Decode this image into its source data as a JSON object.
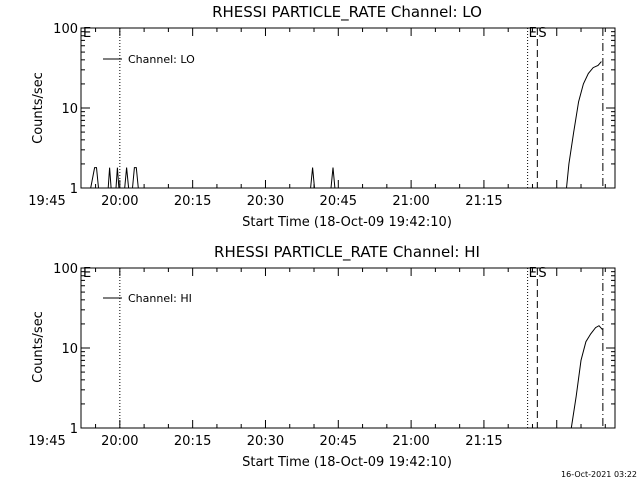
{
  "chart_data": [
    {
      "type": "line",
      "title": "RHESSI PARTICLE_RATE Channel: LO",
      "xlabel": "Start Time (18-Oct-09 19:42:10)",
      "ylabel": "Counts/sec",
      "yscale": "log",
      "xlim_minutes": [
        -8,
        102
      ],
      "ylim": [
        1,
        100
      ],
      "x_ticks": [
        "19:45",
        "20:00",
        "20:15",
        "20:30",
        "20:45",
        "21:00",
        "21:15"
      ],
      "y_ticks": [
        "1",
        "10",
        "100"
      ],
      "legend": {
        "position": "top-left",
        "entries": [
          "Channel: LO"
        ]
      },
      "markers": [
        {
          "label": "E",
          "style": "dotted",
          "minutes": 0
        },
        {
          "label": "E",
          "style": "dotted",
          "minutes": 84
        },
        {
          "label": "S",
          "style": "dashed",
          "minutes": 86
        },
        {
          "label": "",
          "style": "dashdot",
          "minutes": 99.5
        }
      ],
      "series": [
        {
          "name": "Channel: LO",
          "points": [
            [
              -6,
              1
            ],
            [
              -5.2,
              1.8
            ],
            [
              -4.8,
              1.8
            ],
            [
              -4.4,
              1
            ],
            [
              -2.4,
              1
            ],
            [
              -2.1,
              1.8
            ],
            [
              -1.8,
              1
            ],
            [
              -0.8,
              1
            ],
            [
              -0.5,
              1.8
            ],
            [
              -0.2,
              1
            ],
            [
              1.0,
              1
            ],
            [
              1.4,
              1.8
            ],
            [
              1.8,
              1
            ],
            [
              2.6,
              1
            ],
            [
              3.0,
              1.8
            ],
            [
              3.4,
              1.8
            ],
            [
              3.8,
              1
            ],
            [
              39.3,
              1
            ],
            [
              39.7,
              1.8
            ],
            [
              40.1,
              1
            ],
            [
              43.5,
              1
            ],
            [
              43.9,
              1.8
            ],
            [
              44.3,
              1
            ],
            [
              92,
              1
            ],
            [
              92.5,
              2
            ],
            [
              93.5,
              5
            ],
            [
              94.5,
              12
            ],
            [
              95.5,
              20
            ],
            [
              96.5,
              27
            ],
            [
              97.5,
              32
            ],
            [
              98.5,
              34
            ],
            [
              99.2,
              38
            ]
          ]
        }
      ]
    },
    {
      "type": "line",
      "title": "RHESSI PARTICLE_RATE Channel: HI",
      "xlabel": "Start Time (18-Oct-09 19:42:10)",
      "ylabel": "Counts/sec",
      "yscale": "log",
      "xlim_minutes": [
        -8,
        102
      ],
      "ylim": [
        1,
        100
      ],
      "x_ticks": [
        "19:45",
        "20:00",
        "20:15",
        "20:30",
        "20:45",
        "21:00",
        "21:15"
      ],
      "y_ticks": [
        "1",
        "10",
        "100"
      ],
      "legend": {
        "position": "top-left",
        "entries": [
          "Channel: HI"
        ]
      },
      "markers": [
        {
          "label": "E",
          "style": "dotted",
          "minutes": 0
        },
        {
          "label": "E",
          "style": "dotted",
          "minutes": 84
        },
        {
          "label": "S",
          "style": "dashed",
          "minutes": 86
        },
        {
          "label": "",
          "style": "dashdot",
          "minutes": 99.5
        }
      ],
      "series": [
        {
          "name": "Channel: HI",
          "points": [
            [
              93,
              1
            ],
            [
              94,
              2.5
            ],
            [
              95,
              7
            ],
            [
              96,
              12
            ],
            [
              97,
              15
            ],
            [
              98,
              18
            ],
            [
              98.7,
              19
            ],
            [
              99.4,
              17
            ]
          ]
        }
      ]
    }
  ],
  "timestamp": "16-Oct-2021 03:22"
}
